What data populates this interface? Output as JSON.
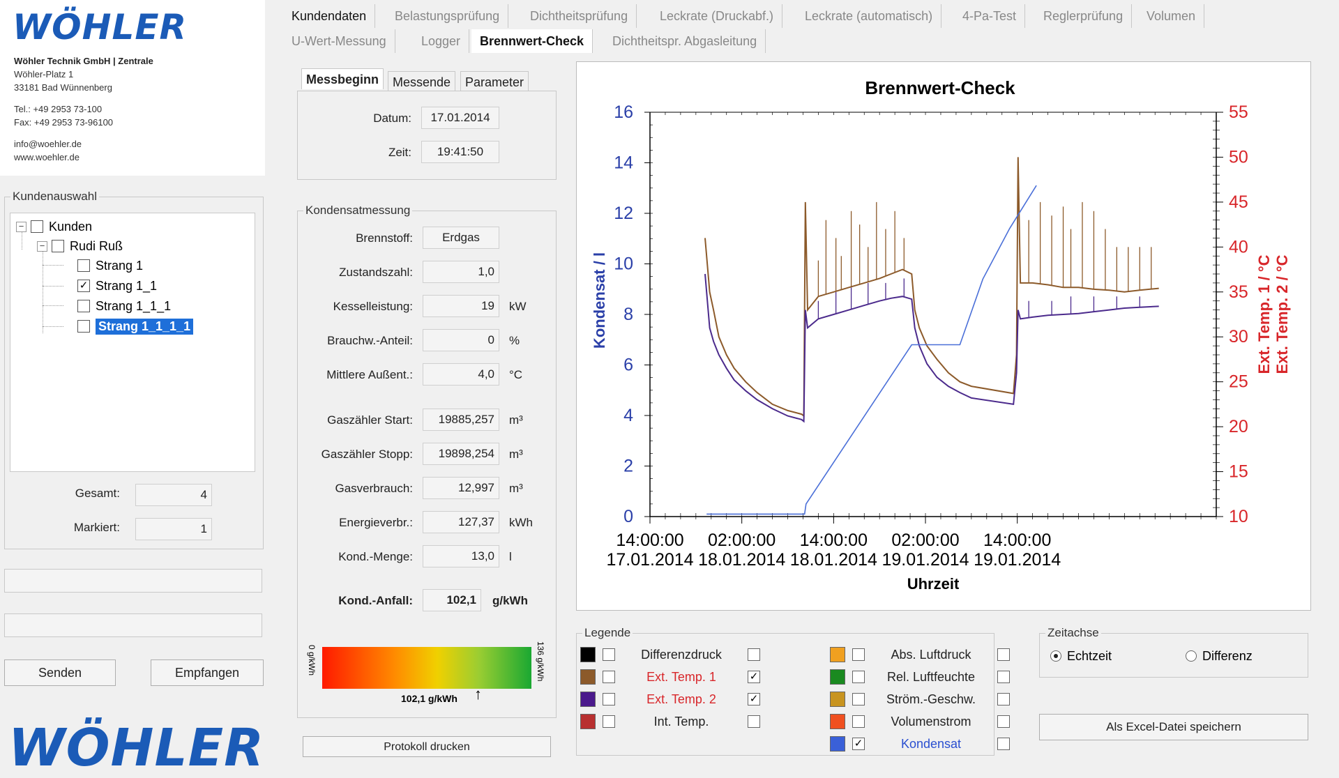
{
  "company": {
    "logo": "WÖHLER",
    "name": "Wöhler Technik GmbH | Zentrale",
    "street": "Wöhler-Platz 1",
    "city": "33181 Bad Wünnenberg",
    "tel": "Tel.: +49 2953 73-100",
    "fax": "Fax: +49 2953 73-96100",
    "email": "info@woehler.de",
    "web": "www.woehler.de"
  },
  "kundenauswahl": {
    "legend": "Kundenauswahl",
    "tree": {
      "root": "Kunden",
      "customer": "Rudi Ruß",
      "items": [
        {
          "label": "Strang 1",
          "checked": ""
        },
        {
          "label": "Strang 1_1",
          "checked": "✓"
        },
        {
          "label": "Strang 1_1_1",
          "checked": ""
        },
        {
          "label": "Strang 1_1_1_1",
          "checked": ""
        }
      ]
    },
    "gesamt_label": "Gesamt:",
    "gesamt_value": "4",
    "markiert_label": "Markiert:",
    "markiert_value": "1"
  },
  "buttons": {
    "senden": "Senden",
    "empfangen": "Empfangen",
    "protokoll": "Protokoll drucken",
    "excel": "Als Excel-Datei speichern"
  },
  "bottom_logo": "WÖHLER",
  "tabs_row1": [
    "Kundendaten",
    "Belastungsprüfung",
    "Dichtheitsprüfung",
    "Leckrate (Druckabf.)",
    "Leckrate (automatisch)",
    "4-Pa-Test",
    "Reglerprüfung",
    "Volumen"
  ],
  "tabs_row2": [
    "U-Wert-Messung",
    "Logger",
    "Brennwert-Check",
    "Dichtheitspr. Abgasleitung"
  ],
  "subtabs": [
    "Messbeginn",
    "Messende",
    "Parameter"
  ],
  "messbeginn": {
    "datum_label": "Datum:",
    "datum": "17.01.2014",
    "zeit_label": "Zeit:",
    "zeit": "19:41:50"
  },
  "kondensat": {
    "legend": "Kondensatmessung",
    "rows": [
      {
        "label": "Brennstoff:",
        "value": "Erdgas",
        "unit": ""
      },
      {
        "label": "Zustandszahl:",
        "value": "1,0",
        "unit": ""
      },
      {
        "label": "Kesselleistung:",
        "value": "19",
        "unit": "kW"
      },
      {
        "label": "Brauchw.-Anteil:",
        "value": "0",
        "unit": "%"
      },
      {
        "label": "Mittlere Außent.:",
        "value": "4,0",
        "unit": "°C"
      },
      {
        "label": "Gaszähler Start:",
        "value": "19885,257",
        "unit": "m³"
      },
      {
        "label": "Gaszähler Stopp:",
        "value": "19898,254",
        "unit": "m³"
      },
      {
        "label": "Gasverbrauch:",
        "value": "12,997",
        "unit": "m³"
      },
      {
        "label": "Energieverbr.:",
        "value": "127,37",
        "unit": "kWh"
      },
      {
        "label": "Kond.-Menge:",
        "value": "13,0",
        "unit": "l"
      }
    ],
    "anfall_label": "Kond.-Anfall:",
    "anfall_value": "102,1",
    "anfall_unit": "g/kWh",
    "scale_min": "0 g/kWh",
    "scale_max": "136 g/kWh",
    "scale_marker": "102,1 g/kWh",
    "scale_fraction": 0.75
  },
  "chart_data": {
    "type": "line",
    "title": "Brennwert-Check",
    "xlabel": "Uhrzeit",
    "ylabel_left": "Kondensat / l",
    "ylabel_right_1": "Ext. Temp. 1 / °C",
    "ylabel_right_2": "Ext. Temp. 2 / °C",
    "ylim_left": [
      0,
      16
    ],
    "ylim_right": [
      10,
      55
    ],
    "yticks_left": [
      "0",
      "2",
      "4",
      "6",
      "8",
      "10",
      "12",
      "14",
      "16"
    ],
    "yticks_right": [
      "10",
      "15",
      "20",
      "25",
      "30",
      "35",
      "40",
      "45",
      "50",
      "55"
    ],
    "xticks": [
      {
        "time": "14:00:00",
        "date": "17.01.2014"
      },
      {
        "time": "02:00:00",
        "date": "18.01.2014"
      },
      {
        "time": "14:00:00",
        "date": "18.01.2014"
      },
      {
        "time": "02:00:00",
        "date": "19.01.2014"
      },
      {
        "time": "14:00:00",
        "date": "19.01.2014"
      }
    ],
    "xlim_hours": [
      0,
      74
    ],
    "series": [
      {
        "name": "Kondensat",
        "axis": "left",
        "color": "#4a6fd8",
        "points": [
          [
            7.4,
            0.1
          ],
          [
            20.2,
            0.1
          ],
          [
            20.4,
            0.5
          ],
          [
            34.2,
            6.8
          ],
          [
            34.5,
            6.8
          ],
          [
            39.5,
            6.8
          ],
          [
            40.5,
            6.8
          ],
          [
            43.5,
            9.4
          ],
          [
            47,
            11.4
          ],
          [
            50.5,
            13.1
          ]
        ]
      },
      {
        "name": "Ext. Temp. 1",
        "axis": "right",
        "color": "#8c5a2a",
        "points": [
          [
            7.2,
            41
          ],
          [
            7.5,
            38
          ],
          [
            7.8,
            35
          ],
          [
            8.3,
            33
          ],
          [
            9,
            30
          ],
          [
            10,
            28
          ],
          [
            11,
            26.5
          ],
          [
            12.5,
            25
          ],
          [
            14,
            23.8
          ],
          [
            16,
            22.5
          ],
          [
            18,
            21.8
          ],
          [
            19.8,
            21.4
          ],
          [
            20.1,
            21.2
          ],
          [
            20.3,
            45
          ],
          [
            20.6,
            33
          ],
          [
            22,
            34.5
          ],
          [
            24,
            35
          ],
          [
            26,
            35.5
          ],
          [
            28,
            36
          ],
          [
            30,
            36.5
          ],
          [
            31.5,
            37
          ],
          [
            33,
            37.5
          ],
          [
            34.2,
            37
          ],
          [
            34.6,
            33
          ],
          [
            35.2,
            31
          ],
          [
            36.2,
            29
          ],
          [
            37.5,
            27.5
          ],
          [
            39,
            26
          ],
          [
            40.5,
            25
          ],
          [
            42,
            24.5
          ],
          [
            47.5,
            23.7
          ],
          [
            47.9,
            28
          ],
          [
            48.1,
            50
          ],
          [
            48.4,
            36
          ],
          [
            50,
            36
          ],
          [
            52,
            35.8
          ],
          [
            54,
            35.5
          ],
          [
            56,
            35.5
          ],
          [
            58,
            35.3
          ],
          [
            60,
            35.2
          ],
          [
            62,
            35
          ],
          [
            64,
            35.2
          ],
          [
            66.5,
            35.4
          ]
        ]
      },
      {
        "name": "Ext. Temp. 2",
        "axis": "right",
        "color": "#4b2a8c",
        "points": [
          [
            7.2,
            37
          ],
          [
            7.5,
            34
          ],
          [
            7.8,
            31
          ],
          [
            8.3,
            29.5
          ],
          [
            9,
            28
          ],
          [
            10,
            26.5
          ],
          [
            11,
            25.2
          ],
          [
            12.5,
            24
          ],
          [
            14,
            23
          ],
          [
            16,
            22
          ],
          [
            18,
            21.2
          ],
          [
            19.8,
            20.8
          ],
          [
            20.1,
            20.6
          ],
          [
            20.3,
            33
          ],
          [
            20.6,
            31
          ],
          [
            22,
            32
          ],
          [
            24,
            32.5
          ],
          [
            26,
            33
          ],
          [
            28,
            33.5
          ],
          [
            30,
            34
          ],
          [
            31.5,
            34.3
          ],
          [
            33,
            34.5
          ],
          [
            34.2,
            34.2
          ],
          [
            34.6,
            31
          ],
          [
            35.2,
            29
          ],
          [
            36.2,
            27
          ],
          [
            37.5,
            25.5
          ],
          [
            39,
            24.5
          ],
          [
            40.5,
            23.8
          ],
          [
            42,
            23.2
          ],
          [
            47.5,
            22.5
          ],
          [
            47.9,
            26
          ],
          [
            48.1,
            33
          ],
          [
            48.4,
            32
          ],
          [
            50,
            32.2
          ],
          [
            52,
            32.4
          ],
          [
            54,
            32.5
          ],
          [
            56,
            32.6
          ],
          [
            58,
            32.8
          ],
          [
            60,
            33
          ],
          [
            62,
            33.2
          ],
          [
            64,
            33.3
          ],
          [
            66.5,
            33.4
          ]
        ]
      }
    ],
    "spikes_temp1": [
      [
        22,
        38.5
      ],
      [
        23,
        43
      ],
      [
        24.3,
        41
      ],
      [
        25,
        39
      ],
      [
        26.3,
        44
      ],
      [
        27.4,
        42.5
      ],
      [
        28.5,
        40
      ],
      [
        29.6,
        45
      ],
      [
        30.8,
        42
      ],
      [
        32,
        44
      ],
      [
        33.2,
        41
      ],
      [
        49.5,
        43
      ],
      [
        51,
        45
      ],
      [
        52.5,
        43.5
      ],
      [
        54,
        44.5
      ],
      [
        55,
        42
      ],
      [
        56.5,
        45
      ],
      [
        58,
        44
      ],
      [
        59.5,
        42
      ],
      [
        61,
        40
      ],
      [
        62.5,
        40
      ],
      [
        64,
        40
      ],
      [
        65.5,
        40
      ]
    ],
    "spikes_temp2": [
      [
        22,
        34
      ],
      [
        24.3,
        35
      ],
      [
        26.3,
        35.5
      ],
      [
        28.5,
        36
      ],
      [
        30.8,
        36
      ],
      [
        33.2,
        36.5
      ],
      [
        49.5,
        34
      ],
      [
        52.5,
        34
      ],
      [
        55,
        34.5
      ],
      [
        58,
        34.5
      ],
      [
        61,
        34.5
      ],
      [
        64,
        34.5
      ]
    ]
  },
  "legende": {
    "legend": "Legende",
    "items": [
      {
        "label": "Differenzdruck",
        "color": "#000000",
        "checked": "",
        "red": false
      },
      {
        "label": "Ext. Temp. 1",
        "color": "#8c5a2a",
        "checked": "✓",
        "red": true
      },
      {
        "label": "Ext. Temp. 2",
        "color": "#4b1a8c",
        "checked": "✓",
        "red": true
      },
      {
        "label": "Int. Temp.",
        "color": "#b83030",
        "checked": "",
        "red": false
      },
      {
        "label": "Abs. Luftdruck",
        "color": "#f0a020",
        "checked": "",
        "red": false
      },
      {
        "label": "Rel. Luftfeuchte",
        "color": "#1a8a20",
        "checked": "",
        "red": false
      },
      {
        "label": "Ström.-Geschw.",
        "color": "#c89420",
        "checked": "",
        "red": false
      },
      {
        "label": "Volumenstrom",
        "color": "#f05020",
        "checked": "",
        "red": false
      },
      {
        "label": "Kondensat",
        "color": "#3a60d8",
        "checked": "",
        "red": false,
        "blue": true
      }
    ]
  },
  "zeitachse": {
    "legend": "Zeitachse",
    "echtzeit": "Echtzeit",
    "differenz": "Differenz"
  }
}
